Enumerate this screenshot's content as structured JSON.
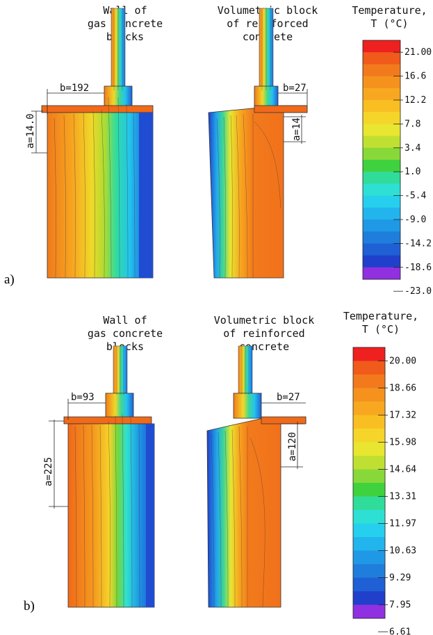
{
  "panel_a": {
    "label": "a)",
    "left_title": [
      "Wall of",
      "gas concrete blocks"
    ],
    "right_title": [
      "Volumetric block",
      "of reinforced concrete"
    ],
    "legend_title": [
      "Temperature,",
      "T (°C)"
    ],
    "left_b": "b=192",
    "left_a": "a=14.0",
    "right_b": "b=27",
    "right_a": "a=14",
    "ticks": [
      "21.00",
      "16.6",
      "12.2",
      "7.8",
      "3.4",
      "1.0",
      "-5.4",
      "-9.0",
      "-14.2",
      "-18.6",
      "-23.0"
    ]
  },
  "panel_b": {
    "label": "b)",
    "left_title": [
      "Wall of",
      "gas concrete blocks"
    ],
    "right_title": [
      "Volumetric block",
      "of reinforced concrete"
    ],
    "legend_title": [
      "Temperature,",
      "T (°C)"
    ],
    "left_b": "b=93",
    "left_a": "a=225",
    "right_b": "b=27",
    "right_a": "a=120",
    "ticks": [
      "20.00",
      "18.66",
      "17.32",
      "15.98",
      "14.64",
      "13.31",
      "11.97",
      "10.63",
      "9.29",
      "7.95",
      "6.61"
    ]
  },
  "colors": {
    "scale": [
      "#ee2020",
      "#f05a1a",
      "#f27a1c",
      "#f5921e",
      "#f7a820",
      "#f9bf22",
      "#f6d52a",
      "#e8e630",
      "#bfe032",
      "#88d83a",
      "#3fd23e",
      "#30dc9a",
      "#2ee0d4",
      "#27cfee",
      "#22b4ec",
      "#1f99e6",
      "#1f7edc",
      "#1f60d4",
      "#2040cc",
      "#9030e0"
    ]
  }
}
